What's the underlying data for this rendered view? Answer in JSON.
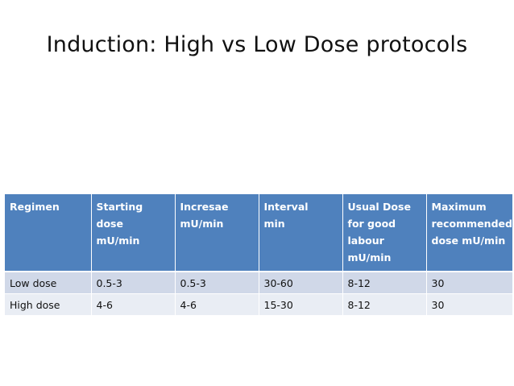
{
  "slide": {
    "title": "Induction: High vs Low Dose protocols"
  },
  "table": {
    "headers": [
      "Regimen",
      "Starting dose\nmU/min",
      "Incresae\nmU/min",
      "Interval\nmin",
      "Usual Dose\nfor good\nlabour\nmU/min",
      "Maximum\nrecommended\ndose mU/min"
    ],
    "rows": [
      [
        "Low dose",
        "0.5-3",
        "0.5-3",
        "30-60",
        "8-12",
        "30"
      ],
      [
        "High dose",
        "4-6",
        "4-6",
        "15-30",
        "8-12",
        "30"
      ]
    ]
  },
  "colors": {
    "header_fill": "#4f81bd",
    "row_odd_fill": "#d0d8e8",
    "row_even_fill": "#e9edf4"
  }
}
